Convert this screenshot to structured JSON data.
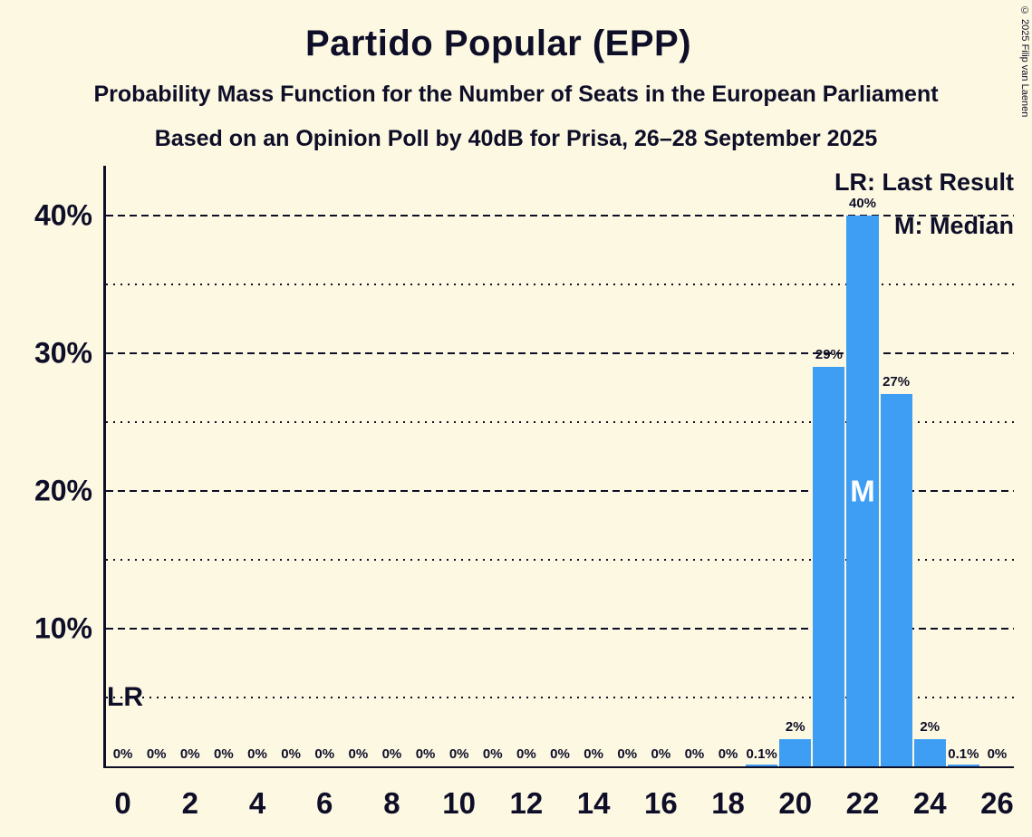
{
  "header": {
    "title": "Partido Popular (EPP)",
    "subtitle1": "Probability Mass Function for the Number of Seats in the European Parliament",
    "subtitle2": "Based on an Opinion Poll by 40dB for Prisa, 26–28 September 2025",
    "copyright": "© 2025 Filip van Laenen"
  },
  "legend": {
    "last_result": "LR: Last Result",
    "median": "M: Median"
  },
  "colors": {
    "background": "#FDF8E2",
    "text": "#0E0E28",
    "bar": "#3E9EF4",
    "median_text": "#FFFFFF"
  },
  "chart_data": {
    "type": "bar",
    "title": "Partido Popular (EPP)",
    "seats": [
      0,
      1,
      2,
      3,
      4,
      5,
      6,
      7,
      8,
      9,
      10,
      11,
      12,
      13,
      14,
      15,
      16,
      17,
      18,
      19,
      20,
      21,
      22,
      23,
      24,
      25,
      26
    ],
    "values": [
      0,
      0,
      0,
      0,
      0,
      0,
      0,
      0,
      0,
      0,
      0,
      0,
      0,
      0,
      0,
      0,
      0,
      0,
      0,
      0.1,
      2,
      29,
      40,
      27,
      2,
      0.1,
      0
    ],
    "bar_labels": [
      "0%",
      "0%",
      "0%",
      "0%",
      "0%",
      "0%",
      "0%",
      "0%",
      "0%",
      "0%",
      "0%",
      "0%",
      "0%",
      "0%",
      "0%",
      "0%",
      "0%",
      "0%",
      "0%",
      "0.1%",
      "2%",
      "29%",
      "40%",
      "27%",
      "2%",
      "0.1%",
      "0%"
    ],
    "x_ticks": [
      {
        "seat": 0,
        "label": "0"
      },
      {
        "seat": 2,
        "label": "2"
      },
      {
        "seat": 4,
        "label": "4"
      },
      {
        "seat": 6,
        "label": "6"
      },
      {
        "seat": 8,
        "label": "8"
      },
      {
        "seat": 10,
        "label": "10"
      },
      {
        "seat": 12,
        "label": "12"
      },
      {
        "seat": 14,
        "label": "14"
      },
      {
        "seat": 16,
        "label": "16"
      },
      {
        "seat": 18,
        "label": "18"
      },
      {
        "seat": 20,
        "label": "20"
      },
      {
        "seat": 22,
        "label": "22"
      },
      {
        "seat": 24,
        "label": "24"
      },
      {
        "seat": 26,
        "label": "26"
      }
    ],
    "y_ticks": [
      {
        "value": 10,
        "label": "10%"
      },
      {
        "value": 20,
        "label": "20%"
      },
      {
        "value": 30,
        "label": "30%"
      },
      {
        "value": 40,
        "label": "40%"
      }
    ],
    "gridlines": {
      "major": [
        10,
        20,
        30,
        40
      ],
      "minor": [
        5,
        15,
        25,
        35
      ]
    },
    "ylim": [
      0,
      43.6
    ],
    "legend_position": "top-right",
    "median_marker": {
      "seat": 22,
      "y": 20,
      "label": "M"
    },
    "last_result_marker": {
      "y": 5,
      "label": "LR"
    }
  }
}
